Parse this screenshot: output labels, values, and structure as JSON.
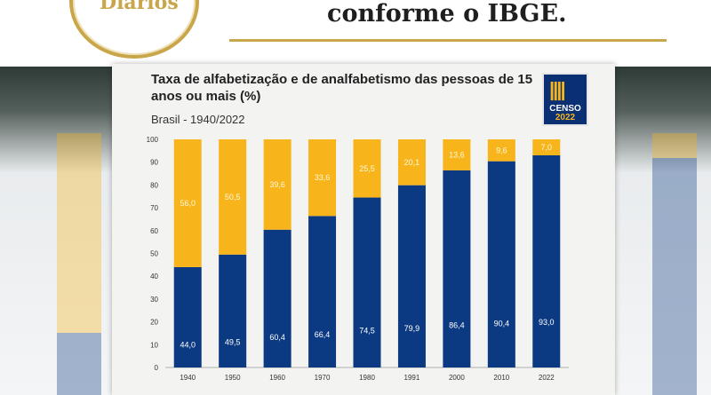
{
  "header": {
    "headline": "conforme o IBGE.",
    "logo_text": "Diários"
  },
  "badge": {
    "line1": "CENSO",
    "line2": "2022",
    "marks": "||||"
  },
  "colors": {
    "literate": "#0b3a82",
    "illiterate": "#f7b51b",
    "gold": "#c9a64a"
  },
  "chart_data": {
    "type": "bar",
    "stacked": true,
    "title": "Taxa de alfabetização e de analfabetismo das pessoas de 15 anos ou mais (%)",
    "subtitle": "Brasil - 1940/2022",
    "categories": [
      "1940",
      "1950",
      "1960",
      "1970",
      "1980",
      "1991",
      "2000",
      "2010",
      "2022"
    ],
    "series": [
      {
        "values": [
          44.0,
          49.5,
          60.4,
          66.4,
          74.5,
          79.9,
          86.4,
          90.4,
          93.0
        ],
        "labels": [
          "44,0",
          "49,5",
          "60,4",
          "66,4",
          "74,5",
          "79,9",
          "86,4",
          "90,4",
          "93,0"
        ]
      },
      {
        "values": [
          56.0,
          50.5,
          39.6,
          33.6,
          25.5,
          20.1,
          13.6,
          9.6,
          7.0
        ],
        "labels": [
          "56,0",
          "50,5",
          "39,6",
          "33,6",
          "25,5",
          "20,1",
          "13,6",
          "9,6",
          "7,0"
        ]
      }
    ],
    "yticks": [
      "0",
      "10",
      "20",
      "30",
      "40",
      "50",
      "60",
      "70",
      "80",
      "90",
      "100"
    ],
    "ylim": [
      0,
      100
    ],
    "grid": false
  }
}
